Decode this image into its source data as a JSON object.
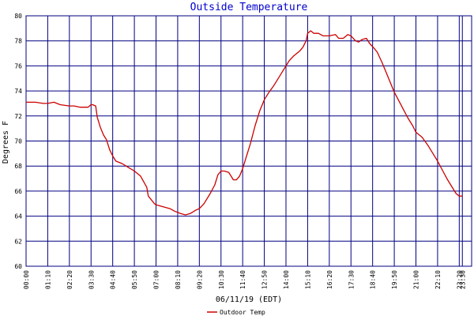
{
  "chart_data": {
    "type": "line",
    "title": "Outside Temperature",
    "xlabel": "06/11/19 (EDT)",
    "ylabel": "Degrees F",
    "ylim": [
      60,
      80
    ],
    "yticks": [
      60,
      62,
      64,
      66,
      68,
      70,
      72,
      74,
      76,
      78,
      80
    ],
    "xticks": [
      "00:00",
      "01:10",
      "02:20",
      "03:30",
      "04:40",
      "05:50",
      "07:00",
      "08:10",
      "09:20",
      "10:30",
      "11:40",
      "12:50",
      "14:00",
      "15:10",
      "16:20",
      "17:30",
      "18:40",
      "19:50",
      "21:00",
      "22:10",
      "23:20",
      "23:30"
    ],
    "grid": true,
    "legend_position": "bottom-left",
    "colors": {
      "series": "#cc0000",
      "grid": "#000080",
      "frame": "#000080",
      "title": "#0000cc"
    },
    "series": [
      {
        "name": "Outdoor Temp",
        "x": [
          "00:00",
          "00:30",
          "00:55",
          "01:00",
          "01:10",
          "01:30",
          "01:50",
          "02:20",
          "02:35",
          "02:55",
          "03:10",
          "03:20",
          "03:30",
          "03:35",
          "03:45",
          "03:50",
          "04:00",
          "04:10",
          "04:20",
          "04:30",
          "04:40",
          "04:50",
          "05:10",
          "05:30",
          "05:50",
          "06:10",
          "06:30",
          "06:35",
          "06:55",
          "07:00",
          "07:15",
          "07:30",
          "07:45",
          "08:00",
          "08:10",
          "08:20",
          "08:35",
          "08:50",
          "09:10",
          "09:20",
          "09:35",
          "09:55",
          "10:10",
          "10:20",
          "10:30",
          "10:40",
          "10:55",
          "11:10",
          "11:20",
          "11:30",
          "11:40",
          "11:50",
          "12:05",
          "12:20",
          "12:35",
          "12:50",
          "13:05",
          "13:20",
          "13:35",
          "13:50",
          "14:00",
          "14:10",
          "14:25",
          "14:45",
          "14:55",
          "15:05",
          "15:10",
          "15:20",
          "15:30",
          "15:45",
          "16:00",
          "16:20",
          "16:40",
          "16:50",
          "17:05",
          "17:20",
          "17:30",
          "17:45",
          "17:55",
          "18:05",
          "18:20",
          "18:30",
          "18:45",
          "18:55",
          "19:10",
          "19:25",
          "19:40",
          "19:50",
          "20:05",
          "20:20",
          "20:35",
          "20:50",
          "21:00",
          "21:20",
          "21:40",
          "21:55",
          "22:10",
          "22:25",
          "22:40",
          "22:55",
          "23:10",
          "23:20",
          "23:30"
        ],
        "values": [
          73.1,
          73.1,
          73.0,
          73.0,
          73.0,
          73.1,
          72.9,
          72.8,
          72.8,
          72.7,
          72.7,
          72.7,
          72.9,
          72.9,
          72.8,
          71.9,
          71.1,
          70.5,
          70.1,
          69.3,
          68.8,
          68.4,
          68.2,
          67.9,
          67.6,
          67.2,
          66.3,
          65.6,
          65.0,
          64.9,
          64.8,
          64.7,
          64.6,
          64.4,
          64.3,
          64.2,
          64.1,
          64.2,
          64.5,
          64.6,
          65.0,
          65.8,
          66.5,
          67.3,
          67.6,
          67.6,
          67.5,
          66.9,
          66.9,
          67.2,
          67.8,
          68.6,
          69.8,
          71.2,
          72.4,
          73.3,
          73.9,
          74.4,
          75.0,
          75.6,
          76.0,
          76.4,
          76.8,
          77.2,
          77.5,
          78.0,
          78.6,
          78.8,
          78.6,
          78.6,
          78.4,
          78.4,
          78.5,
          78.2,
          78.2,
          78.5,
          78.4,
          78.0,
          77.9,
          78.1,
          78.2,
          77.8,
          77.4,
          77.1,
          76.3,
          75.4,
          74.5,
          73.9,
          73.2,
          72.5,
          71.8,
          71.2,
          70.7,
          70.3,
          69.6,
          69.0,
          68.4,
          67.7,
          67.0,
          66.4,
          65.8,
          65.6,
          65.6
        ]
      }
    ]
  }
}
